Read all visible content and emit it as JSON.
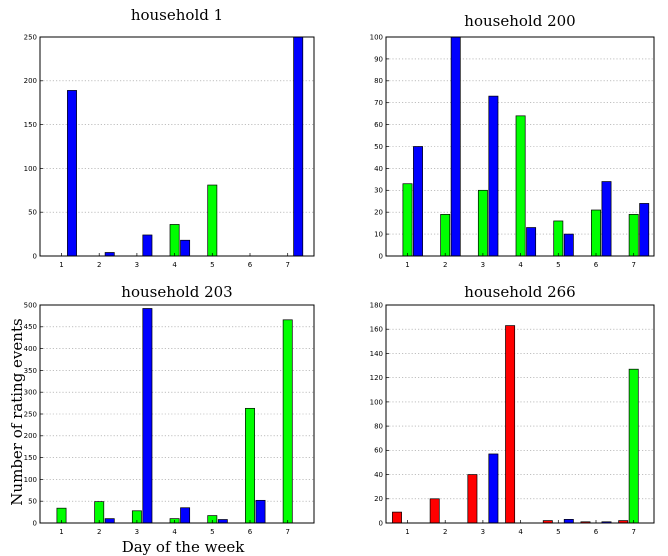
{
  "figure": {
    "ylabel": "Number of rating events",
    "xlabel": "Day of the week"
  },
  "chart_data": [
    {
      "type": "bar",
      "title": "household 1",
      "categories": [
        "1",
        "2",
        "3",
        "4",
        "5",
        "6",
        "7"
      ],
      "ylim": [
        0,
        250
      ],
      "yticks": [
        0,
        50,
        100,
        150,
        200,
        250
      ],
      "grid": true,
      "series": [
        {
          "color": "#ff0000",
          "values": [
            0,
            0,
            0,
            0,
            0,
            0,
            0
          ]
        },
        {
          "color": "#00ff00",
          "values": [
            0,
            0,
            0,
            36,
            81,
            0,
            0
          ]
        },
        {
          "color": "#0000ff",
          "values": [
            189,
            4,
            24,
            18,
            0,
            0,
            250
          ]
        }
      ]
    },
    {
      "type": "bar",
      "title": "household 200",
      "categories": [
        "1",
        "2",
        "3",
        "4",
        "5",
        "6",
        "7"
      ],
      "ylim": [
        0,
        100
      ],
      "yticks": [
        0,
        10,
        20,
        30,
        40,
        50,
        60,
        70,
        80,
        90,
        100
      ],
      "grid": true,
      "series": [
        {
          "color": "#ff0000",
          "values": [
            0,
            0,
            0,
            0,
            0,
            0,
            0
          ]
        },
        {
          "color": "#00ff00",
          "values": [
            33,
            19,
            30,
            64,
            16,
            21,
            19
          ]
        },
        {
          "color": "#0000ff",
          "values": [
            50,
            100,
            73,
            13,
            10,
            34,
            24
          ]
        }
      ]
    },
    {
      "type": "bar",
      "title": "household 203",
      "categories": [
        "1",
        "2",
        "3",
        "4",
        "5",
        "6",
        "7"
      ],
      "ylim": [
        0,
        500
      ],
      "yticks": [
        0,
        50,
        100,
        150,
        200,
        250,
        300,
        350,
        400,
        450,
        500
      ],
      "grid": true,
      "series": [
        {
          "color": "#ff0000",
          "values": [
            0,
            0,
            0,
            0,
            0,
            0,
            0
          ]
        },
        {
          "color": "#00ff00",
          "values": [
            34,
            49,
            28,
            10,
            17,
            263,
            466
          ]
        },
        {
          "color": "#0000ff",
          "values": [
            0,
            10,
            492,
            35,
            8,
            52,
            0
          ]
        }
      ]
    },
    {
      "type": "bar",
      "title": "household 266",
      "categories": [
        "1",
        "2",
        "3",
        "4",
        "5",
        "6",
        "7"
      ],
      "ylim": [
        0,
        180
      ],
      "yticks": [
        0,
        20,
        40,
        60,
        80,
        100,
        120,
        140,
        160,
        180
      ],
      "grid": true,
      "series": [
        {
          "color": "#ff0000",
          "values": [
            9,
            20,
            40,
            163,
            2,
            1,
            2
          ]
        },
        {
          "color": "#00ff00",
          "values": [
            0,
            0,
            0,
            0,
            0,
            0,
            127
          ]
        },
        {
          "color": "#0000ff",
          "values": [
            0,
            0,
            57,
            0,
            3,
            1,
            0
          ]
        }
      ]
    }
  ]
}
